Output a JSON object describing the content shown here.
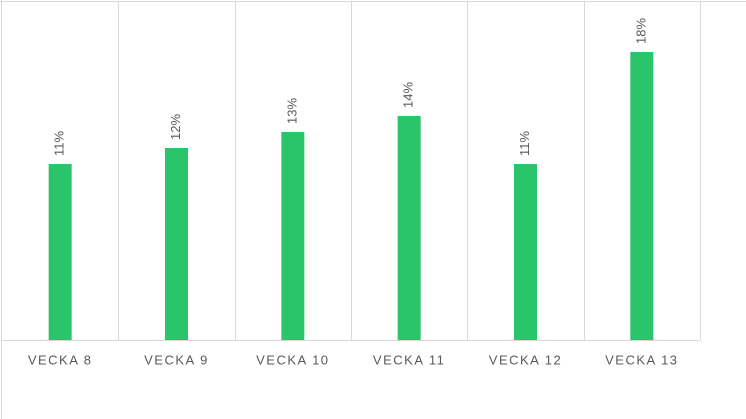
{
  "chart_data": {
    "type": "bar",
    "categories": [
      "VECKA 8",
      "VECKA 9",
      "VECKA 10",
      "VECKA 11",
      "VECKA 12",
      "VECKA 13"
    ],
    "values": [
      11,
      12,
      13,
      14,
      11,
      18
    ],
    "value_labels": [
      "11%",
      "12%",
      "13%",
      "14%",
      "11%",
      "18%"
    ],
    "color": "#2ac56a",
    "ylim": [
      0,
      20
    ]
  }
}
